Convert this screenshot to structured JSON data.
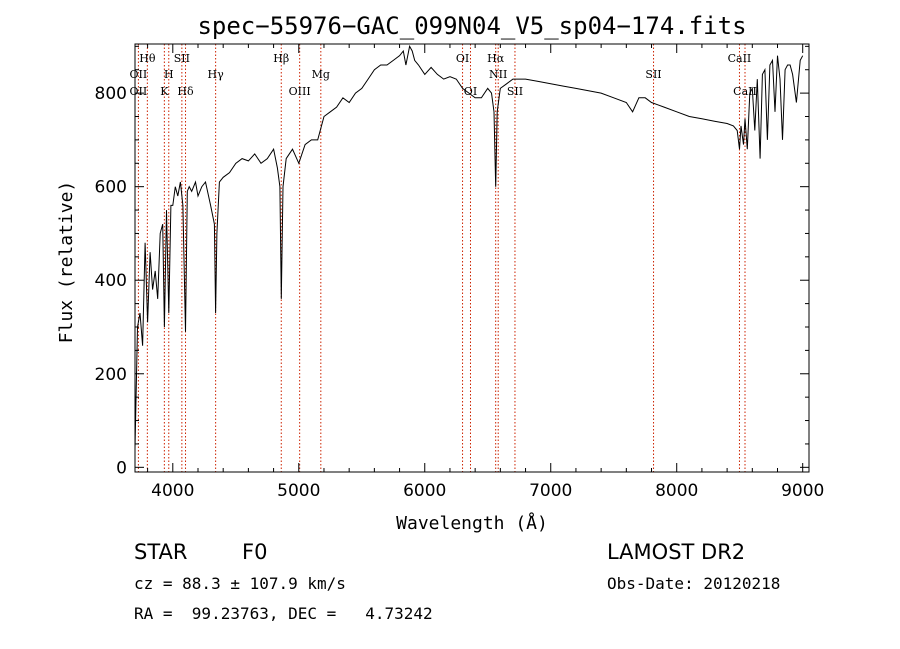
{
  "chart_data": {
    "type": "line",
    "title": "spec−55976−GAC_099N04_V5_sp04−174.fits",
    "xlabel": "Wavelength (Å)",
    "ylabel": "Flux (relative)",
    "xlim": [
      3700,
      9050
    ],
    "ylim": [
      -10,
      905
    ],
    "xticks": [
      4000,
      5000,
      6000,
      7000,
      8000,
      9000
    ],
    "xtick_labels": [
      "4000",
      "5000",
      "6000",
      "7000",
      "8000",
      "9000"
    ],
    "yticks": [
      0,
      200,
      400,
      600,
      800
    ],
    "ytick_labels": [
      "0",
      "200",
      "400",
      "600",
      "800"
    ],
    "grid": false,
    "series": [
      {
        "x": [
          3700,
          3720,
          3740,
          3760,
          3780,
          3800,
          3820,
          3840,
          3860,
          3880,
          3900,
          3920,
          3933,
          3950,
          3968,
          3985,
          4000,
          4020,
          4040,
          4060,
          4080,
          4101,
          4115,
          4130,
          4150,
          4180,
          4200,
          4230,
          4260,
          4300,
          4330,
          4340,
          4350,
          4370,
          4400,
          4450,
          4500,
          4550,
          4600,
          4650,
          4700,
          4750,
          4800,
          4830,
          4850,
          4861,
          4875,
          4900,
          4950,
          5000,
          5050,
          5100,
          5150,
          5200,
          5250,
          5300,
          5350,
          5400,
          5450,
          5500,
          5550,
          5600,
          5650,
          5700,
          5750,
          5800,
          5830,
          5850,
          5880,
          5900,
          5920,
          5950,
          6000,
          6050,
          6100,
          6150,
          6200,
          6250,
          6300,
          6350,
          6400,
          6450,
          6500,
          6530,
          6550,
          6563,
          6575,
          6600,
          6650,
          6700,
          6750,
          6800,
          6900,
          7000,
          7100,
          7200,
          7300,
          7400,
          7500,
          7600,
          7650,
          7700,
          7750,
          7800,
          7850,
          7900,
          8000,
          8100,
          8200,
          8300,
          8400,
          8450,
          8480,
          8498,
          8510,
          8530,
          8542,
          8560,
          8580,
          8600,
          8620,
          8640,
          8662,
          8680,
          8700,
          8720,
          8740,
          8760,
          8780,
          8800,
          8820,
          8840,
          8860,
          8880,
          8900,
          8920,
          8950,
          8980,
          9000
        ],
        "y": [
          40,
          300,
          330,
          260,
          480,
          310,
          460,
          380,
          420,
          360,
          500,
          520,
          300,
          550,
          330,
          560,
          560,
          600,
          580,
          610,
          560,
          290,
          590,
          600,
          590,
          610,
          580,
          600,
          610,
          560,
          520,
          330,
          500,
          610,
          620,
          630,
          650,
          660,
          655,
          670,
          650,
          660,
          680,
          640,
          600,
          360,
          600,
          660,
          680,
          650,
          690,
          700,
          700,
          750,
          760,
          770,
          790,
          780,
          800,
          810,
          830,
          850,
          860,
          860,
          870,
          880,
          890,
          860,
          900,
          890,
          870,
          860,
          840,
          855,
          840,
          830,
          835,
          830,
          810,
          800,
          790,
          790,
          810,
          800,
          760,
          600,
          760,
          810,
          820,
          830,
          830,
          830,
          825,
          820,
          815,
          810,
          805,
          800,
          790,
          780,
          760,
          790,
          790,
          780,
          775,
          770,
          760,
          750,
          745,
          740,
          735,
          730,
          720,
          680,
          730,
          690,
          745,
          680,
          800,
          810,
          720,
          830,
          660,
          840,
          850,
          700,
          860,
          870,
          760,
          880,
          830,
          700,
          850,
          860,
          860,
          840,
          780,
          870,
          880
        ]
      }
    ],
    "spectral_lines": [
      {
        "label": "Hθ",
        "x": 3798,
        "tier": "top"
      },
      {
        "label": "OII",
        "x": 3727,
        "tier": "mid"
      },
      {
        "label": "OII",
        "x": 3727,
        "tier": "low"
      },
      {
        "label": "H",
        "x": 3968,
        "tier": "mid"
      },
      {
        "label": "K",
        "x": 3933,
        "tier": "low"
      },
      {
        "label": "SII",
        "x": 4072,
        "tier": "top"
      },
      {
        "label": "Hδ",
        "x": 4101,
        "tier": "low"
      },
      {
        "label": "Hγ",
        "x": 4340,
        "tier": "mid"
      },
      {
        "label": "Hβ",
        "x": 4861,
        "tier": "top"
      },
      {
        "label": "OIII",
        "x": 5007,
        "tier": "low"
      },
      {
        "label": "Mg",
        "x": 5175,
        "tier": "mid"
      },
      {
        "label": "OI",
        "x": 6300,
        "tier": "top"
      },
      {
        "label": "OI",
        "x": 6363,
        "tier": "low"
      },
      {
        "label": "Hα",
        "x": 6563,
        "tier": "top"
      },
      {
        "label": "NII",
        "x": 6583,
        "tier": "mid"
      },
      {
        "label": "SII",
        "x": 6716,
        "tier": "low"
      },
      {
        "label": "SII",
        "x": 7816,
        "tier": "mid"
      },
      {
        "label": "CaII",
        "x": 8498,
        "tier": "top"
      },
      {
        "label": "CaII",
        "x": 8542,
        "tier": "low"
      }
    ],
    "line_color": "#000000",
    "marker_color": "#cc2200"
  },
  "info": {
    "class_label": "STAR",
    "subclass": "F0",
    "survey": "LAMOST DR2",
    "cz": "cz = 88.3 ± 107.9 km/s",
    "obs_date": "Obs-Date: 20120218",
    "coords": "RA =  99.23763, DEC =   4.73242"
  }
}
